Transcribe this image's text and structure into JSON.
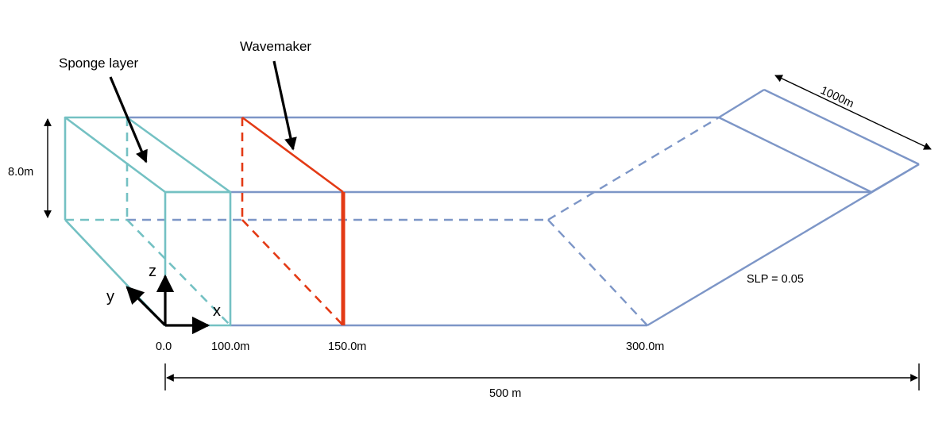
{
  "labels": {
    "sponge_layer": "Sponge layer",
    "wavemaker": "Wavemaker",
    "height": "8.0m",
    "width": "1000m",
    "slope": "SLP = 0.05",
    "total_length": "500 m",
    "axis_x": "x",
    "axis_y": "y",
    "axis_z": "z"
  },
  "ticks": {
    "origin": "0.0",
    "sponge_end": "100.0m",
    "wavemaker_pos": "150.0m",
    "slope_start": "300.0m"
  },
  "colors": {
    "tank": "#7d96c7",
    "sponge": "#74c1c3",
    "wavemaker": "#e33a15",
    "annotation": "#000000"
  }
}
